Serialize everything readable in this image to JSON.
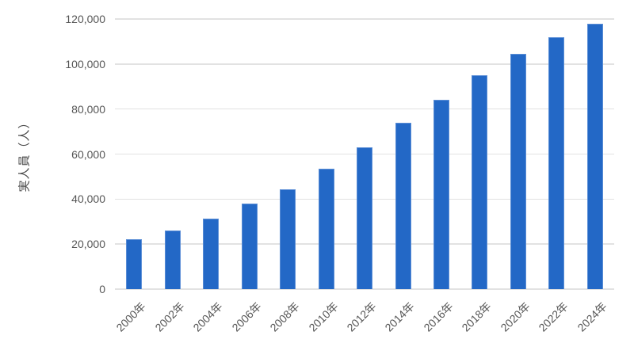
{
  "chart_data": {
    "type": "bar",
    "title": "",
    "xlabel": "",
    "ylabel": "実人員（人）",
    "categories": [
      "2000年",
      "2002年",
      "2004年",
      "2006年",
      "2008年",
      "2010年",
      "2012年",
      "2014年",
      "2016年",
      "2018年",
      "2020年",
      "2022年",
      "2024年"
    ],
    "values": [
      22000,
      26000,
      31500,
      38000,
      44500,
      53500,
      63000,
      74000,
      84000,
      95000,
      104500,
      112000,
      118000
    ],
    "ylim": [
      0,
      120000
    ],
    "ytick_interval": 20000,
    "ytick_labels": [
      "0",
      "20,000",
      "40,000",
      "60,000",
      "80,000",
      "100,000",
      "120,000"
    ],
    "grid": "horizontal",
    "legend_position": "none",
    "bar_color": "#2368c6",
    "bar_border_color": "#5b8ed6",
    "gridline_color": "#e2e2e2",
    "tick_label_color": "#565656"
  }
}
